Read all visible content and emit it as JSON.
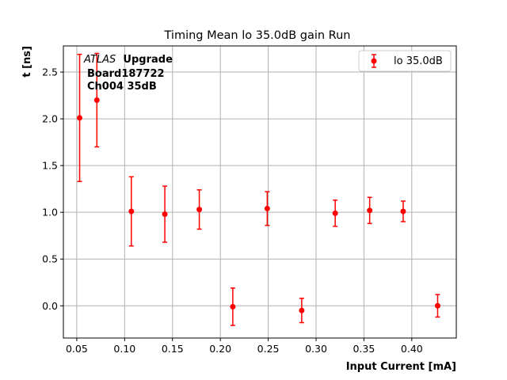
{
  "chart_data": {
    "type": "scatter",
    "title": "Timing Mean lo 35.0dB gain Run",
    "xlabel": "Input Current [mA]",
    "ylabel": "t [ns]",
    "xlim": [
      0.036,
      0.4465
    ],
    "ylim": [
      -0.345,
      2.78
    ],
    "xticks": [
      0.05,
      0.1,
      0.15,
      0.2,
      0.25,
      0.3,
      0.35,
      0.4
    ],
    "xtick_labels": [
      "0.05",
      "0.10",
      "0.15",
      "0.20",
      "0.25",
      "0.30",
      "0.35",
      "0.40"
    ],
    "yticks": [
      0.0,
      0.5,
      1.0,
      1.5,
      2.0,
      2.5
    ],
    "ytick_labels": [
      "0.0",
      "0.5",
      "1.0",
      "1.5",
      "2.0",
      "2.5"
    ],
    "grid": true,
    "legend_position": "top-right",
    "series": [
      {
        "name": "lo 35.0dB",
        "color": "#ff0000",
        "marker": "circle",
        "x": [
          0.053,
          0.071,
          0.107,
          0.142,
          0.178,
          0.213,
          0.249,
          0.285,
          0.32,
          0.356,
          0.391,
          0.427
        ],
        "y": [
          2.01,
          2.2,
          1.01,
          0.98,
          1.03,
          -0.01,
          1.04,
          -0.05,
          0.99,
          1.02,
          1.01,
          0.0
        ],
        "yerr": [
          0.68,
          0.5,
          0.37,
          0.3,
          0.21,
          0.2,
          0.18,
          0.13,
          0.14,
          0.14,
          0.11,
          0.12
        ]
      }
    ],
    "annotation": {
      "atlas_italic": "ATLAS",
      "atlas_bold": "Upgrade",
      "line2": "Board187722",
      "line3": "Ch004 35dB"
    }
  }
}
